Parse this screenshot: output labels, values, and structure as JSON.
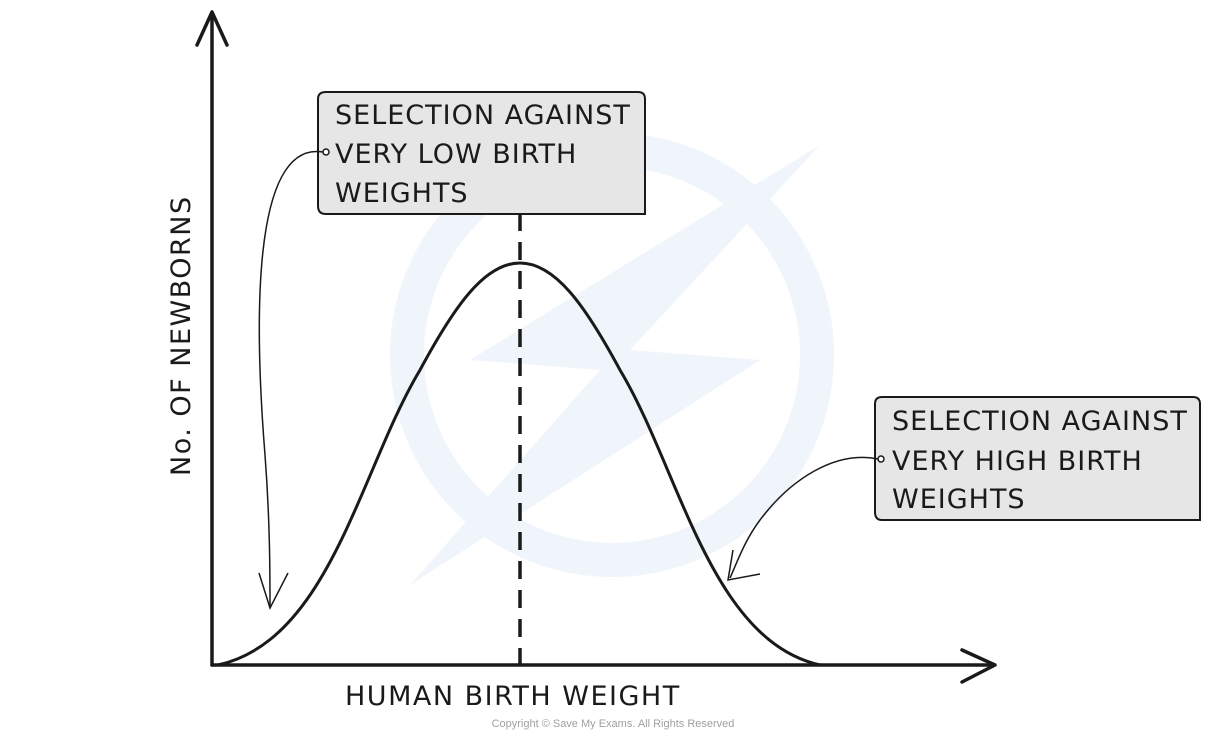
{
  "diagram": {
    "y_axis_label": "No. OF NEWBORNS",
    "x_axis_label": "HUMAN BIRTH WEIGHT",
    "callouts": [
      {
        "lines": [
          "SELECTION AGAINST",
          "VERY LOW BIRTH",
          "WEIGHTS"
        ]
      },
      {
        "lines": [
          "SELECTION AGAINST",
          "VERY HIGH BIRTH",
          "WEIGHTS"
        ]
      }
    ],
    "copyright": "Copyright © Save My Exams. All Rights Reserved"
  },
  "colors": {
    "ink": "#1a1a1a",
    "callout_fill": "#e6e6e6",
    "watermark": "#e3edf6"
  }
}
